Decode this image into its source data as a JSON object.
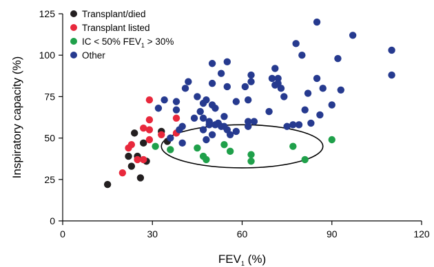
{
  "chart_data": {
    "type": "scatter",
    "xlabel": "FEV",
    "xlabel_sub": "1",
    "xlabel_suffix": " (%)",
    "ylabel": "Inspiratory capacity (%)",
    "xlim": [
      0,
      120
    ],
    "ylim": [
      0,
      125
    ],
    "x_ticks": [
      0,
      30,
      60,
      90,
      120
    ],
    "y_ticks": [
      0,
      25,
      50,
      75,
      100,
      125
    ],
    "grid": false,
    "legend_position": "top-left",
    "series": [
      {
        "name": "Transplant/died",
        "color": "#231f20",
        "points": [
          [
            15,
            22
          ],
          [
            22,
            39
          ],
          [
            23,
            33
          ],
          [
            24,
            53
          ],
          [
            25,
            39
          ],
          [
            26,
            26
          ],
          [
            27,
            47
          ],
          [
            28,
            36
          ],
          [
            33,
            54
          ],
          [
            35,
            48
          ]
        ]
      },
      {
        "name": "Transplant listed",
        "color": "#e8283c",
        "points": [
          [
            20,
            29
          ],
          [
            22,
            44
          ],
          [
            23,
            46
          ],
          [
            25,
            37
          ],
          [
            27,
            37
          ],
          [
            27,
            56
          ],
          [
            29,
            55
          ],
          [
            29,
            49
          ],
          [
            29,
            61
          ],
          [
            29,
            73
          ],
          [
            33,
            52
          ],
          [
            38,
            62
          ],
          [
            38,
            53
          ]
        ]
      },
      {
        "name": "IC < 50% FEV1 > 30%",
        "label_parts": [
          "IC < 50% FEV",
          "1",
          " > 30%"
        ],
        "color": "#1fa04a",
        "points": [
          [
            31,
            45
          ],
          [
            36,
            43
          ],
          [
            45,
            44
          ],
          [
            47,
            39
          ],
          [
            48,
            37
          ],
          [
            54,
            46
          ],
          [
            56,
            42
          ],
          [
            63,
            36
          ],
          [
            63,
            40
          ],
          [
            77,
            45
          ],
          [
            81,
            37
          ],
          [
            90,
            49
          ]
        ]
      },
      {
        "name": "Other",
        "color": "#263a8f",
        "points": [
          [
            32,
            68
          ],
          [
            34,
            73
          ],
          [
            36,
            50
          ],
          [
            38,
            72
          ],
          [
            38,
            67
          ],
          [
            39,
            55
          ],
          [
            40,
            57
          ],
          [
            40,
            47
          ],
          [
            41,
            80
          ],
          [
            42,
            84
          ],
          [
            44,
            62
          ],
          [
            45,
            75
          ],
          [
            46,
            66
          ],
          [
            47,
            71
          ],
          [
            47,
            62
          ],
          [
            47,
            55
          ],
          [
            48,
            73
          ],
          [
            48,
            49
          ],
          [
            49,
            60
          ],
          [
            49,
            58
          ],
          [
            50,
            95
          ],
          [
            50,
            83
          ],
          [
            50,
            70
          ],
          [
            50,
            52
          ],
          [
            51,
            68
          ],
          [
            51,
            58
          ],
          [
            52,
            59
          ],
          [
            53,
            89
          ],
          [
            53,
            57
          ],
          [
            54,
            63
          ],
          [
            54,
            57
          ],
          [
            55,
            81
          ],
          [
            55,
            96
          ],
          [
            55,
            55
          ],
          [
            56,
            52
          ],
          [
            58,
            72
          ],
          [
            58,
            54
          ],
          [
            61,
            81
          ],
          [
            62,
            57
          ],
          [
            62,
            60
          ],
          [
            62,
            73
          ],
          [
            63,
            84
          ],
          [
            63,
            88
          ],
          [
            64,
            60
          ],
          [
            69,
            66
          ],
          [
            70,
            86
          ],
          [
            71,
            82
          ],
          [
            71,
            92
          ],
          [
            72,
            86
          ],
          [
            72,
            83
          ],
          [
            73,
            80
          ],
          [
            74,
            75
          ],
          [
            75,
            57
          ],
          [
            77,
            58
          ],
          [
            78,
            107
          ],
          [
            79,
            58
          ],
          [
            80,
            100
          ],
          [
            81,
            67
          ],
          [
            82,
            77
          ],
          [
            83,
            59
          ],
          [
            85,
            86
          ],
          [
            85,
            120
          ],
          [
            86,
            64
          ],
          [
            87,
            80
          ],
          [
            90,
            70
          ],
          [
            92,
            98
          ],
          [
            93,
            79
          ],
          [
            97,
            112
          ],
          [
            110,
            88
          ],
          [
            110,
            103
          ]
        ]
      }
    ],
    "annotations": [
      {
        "type": "ellipse",
        "center": [
          60,
          45
        ],
        "radii": [
          27,
          13
        ]
      }
    ]
  }
}
